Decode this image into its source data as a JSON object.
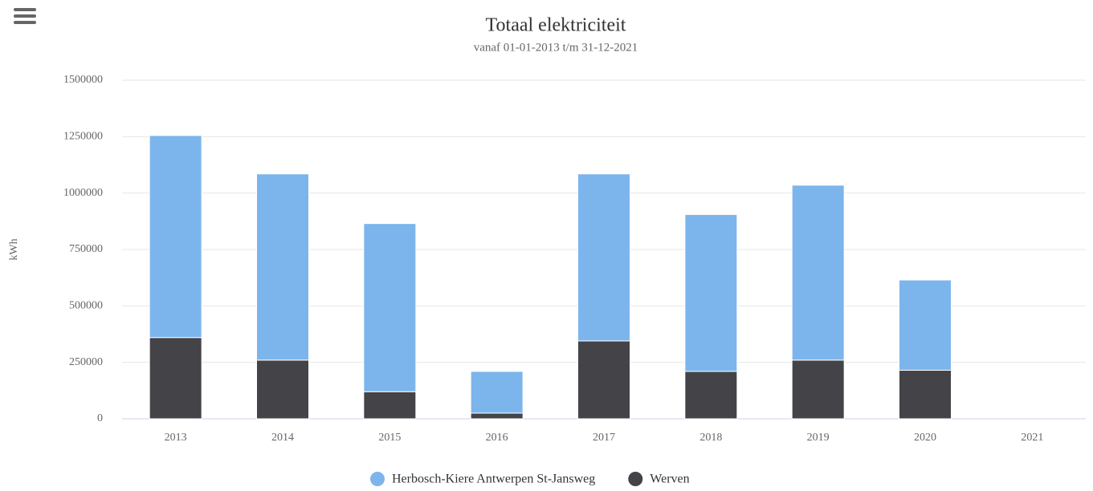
{
  "chart_data": {
    "type": "stacked_bar",
    "title": "Totaal elektriciteit",
    "subtitle": "vanaf 01-01-2013 t/m 31-12-2021",
    "y_label": "kWh",
    "categories": [
      "2013",
      "2014",
      "2015",
      "2016",
      "2017",
      "2018",
      "2019",
      "2020",
      "2021"
    ],
    "series": [
      {
        "name": "Herbosch-Kiere Antwerpen St-Jansweg",
        "color": "#7cb5ec",
        "values": [
          895000,
          825000,
          745000,
          185000,
          740000,
          695000,
          775000,
          400000,
          null
        ]
      },
      {
        "name": "Werven",
        "color": "#434348",
        "values": [
          360000,
          260000,
          120000,
          25000,
          345000,
          210000,
          260000,
          215000,
          null
        ]
      }
    ],
    "ylim": [
      0,
      1500000
    ],
    "yticks": [
      0,
      250000,
      500000,
      750000,
      1000000,
      1250000,
      1500000
    ],
    "grid": true,
    "legend": "bottom"
  }
}
